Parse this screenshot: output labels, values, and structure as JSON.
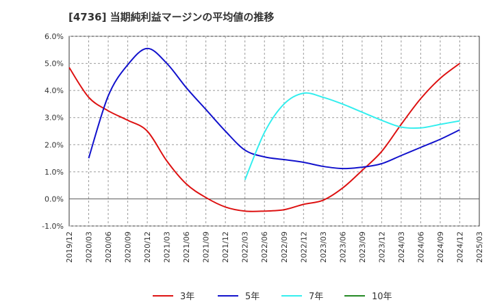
{
  "chart_data": {
    "type": "line",
    "title": "[4736]  当期純利益マージンの平均値の推移",
    "xlabel": "",
    "ylabel": "",
    "ylim": [
      -1.0,
      6.0
    ],
    "yticks": [
      "-1.0%",
      "0.0%",
      "1.0%",
      "2.0%",
      "3.0%",
      "4.0%",
      "5.0%",
      "6.0%"
    ],
    "ytick_values": [
      -1.0,
      0.0,
      1.0,
      2.0,
      3.0,
      4.0,
      5.0,
      6.0
    ],
    "xticks": [
      "2019/12",
      "2020/03",
      "2020/06",
      "2020/09",
      "2020/12",
      "2021/03",
      "2021/06",
      "2021/09",
      "2021/12",
      "2022/03",
      "2022/06",
      "2022/09",
      "2022/12",
      "2023/03",
      "2023/06",
      "2023/09",
      "2023/12",
      "2024/03",
      "2024/06",
      "2024/09",
      "2024/12",
      "2025/03"
    ],
    "grid": true,
    "legend_position": "bottom",
    "series": [
      {
        "name": "3年",
        "color": "#dd1111",
        "x": [
          "2019/12",
          "2020/03",
          "2020/06",
          "2020/09",
          "2020/12",
          "2021/03",
          "2021/06",
          "2021/09",
          "2021/12",
          "2022/03",
          "2022/06",
          "2022/09",
          "2022/12",
          "2023/03",
          "2023/06",
          "2023/09",
          "2023/12",
          "2024/03",
          "2024/06",
          "2024/09",
          "2024/12"
        ],
        "values": [
          4.85,
          3.75,
          3.25,
          2.9,
          2.5,
          1.4,
          0.55,
          0.05,
          -0.3,
          -0.45,
          -0.45,
          -0.4,
          -0.2,
          -0.05,
          0.4,
          1.05,
          1.75,
          2.75,
          3.7,
          4.45,
          5.0
        ]
      },
      {
        "name": "5年",
        "color": "#1111cc",
        "x": [
          "2020/03",
          "2020/06",
          "2020/09",
          "2020/12",
          "2021/03",
          "2021/06",
          "2021/09",
          "2021/12",
          "2022/03",
          "2022/06",
          "2022/09",
          "2022/12",
          "2023/03",
          "2023/06",
          "2023/09",
          "2023/12",
          "2024/03",
          "2024/06",
          "2024/09",
          "2024/12"
        ],
        "values": [
          1.5,
          3.8,
          4.95,
          5.55,
          5.0,
          4.1,
          3.3,
          2.5,
          1.8,
          1.55,
          1.45,
          1.35,
          1.2,
          1.12,
          1.17,
          1.3,
          1.6,
          1.9,
          2.2,
          2.55
        ]
      },
      {
        "name": "7年",
        "color": "#33eeee",
        "x": [
          "2022/03",
          "2022/06",
          "2022/09",
          "2022/12",
          "2023/03",
          "2023/06",
          "2023/09",
          "2023/12",
          "2024/03",
          "2024/06",
          "2024/09",
          "2024/12"
        ],
        "values": [
          0.7,
          2.45,
          3.5,
          3.9,
          3.75,
          3.5,
          3.2,
          2.9,
          2.65,
          2.62,
          2.75,
          2.88
        ]
      },
      {
        "name": "10年",
        "color": "#228822",
        "x": [],
        "values": []
      }
    ]
  }
}
